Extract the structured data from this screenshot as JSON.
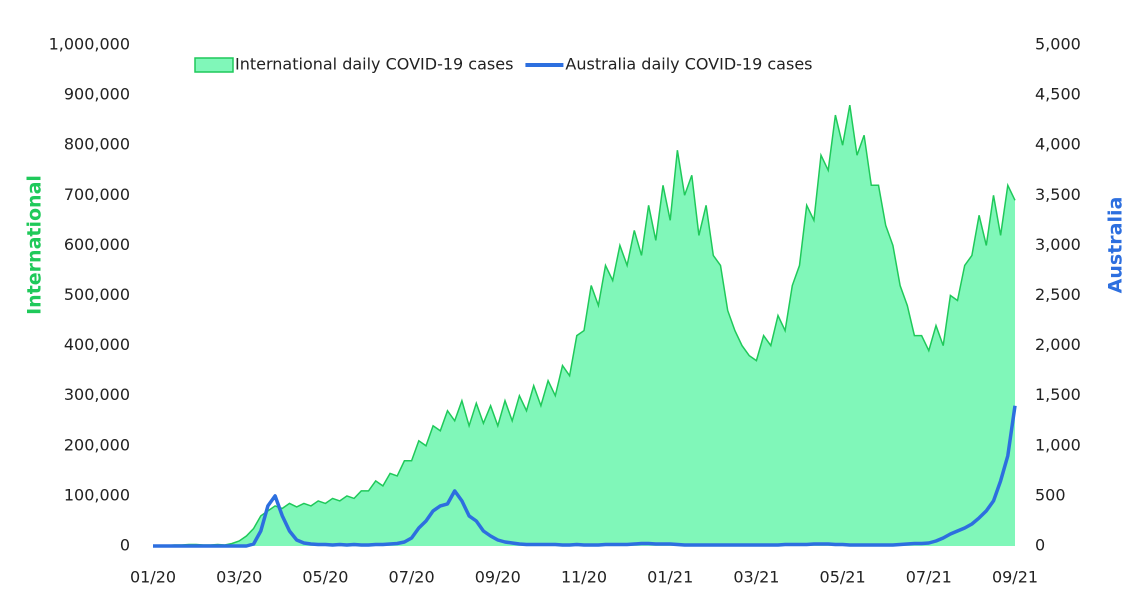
{
  "chart_data": {
    "type": "line",
    "categories": [
      "01/20",
      null,
      null,
      null,
      null,
      null,
      null,
      null,
      null,
      null,
      null,
      null,
      "03/20",
      null,
      null,
      null,
      null,
      null,
      null,
      null,
      null,
      null,
      null,
      null,
      "05/20",
      null,
      null,
      null,
      null,
      null,
      null,
      null,
      null,
      null,
      null,
      null,
      "07/20",
      null,
      null,
      null,
      null,
      null,
      null,
      null,
      null,
      null,
      null,
      null,
      "09/20",
      null,
      null,
      null,
      null,
      null,
      null,
      null,
      null,
      null,
      null,
      null,
      "11/20",
      null,
      null,
      null,
      null,
      null,
      null,
      null,
      null,
      null,
      null,
      null,
      "01/21",
      null,
      null,
      null,
      null,
      null,
      null,
      null,
      null,
      null,
      null,
      null,
      "03/21",
      null,
      null,
      null,
      null,
      null,
      null,
      null,
      null,
      null,
      null,
      null,
      "05/21",
      null,
      null,
      null,
      null,
      null,
      null,
      null,
      null,
      null,
      null,
      null,
      "07/21",
      null,
      null,
      null,
      null,
      null,
      null,
      null,
      null,
      null,
      null,
      null,
      "09/21"
    ],
    "series": [
      {
        "name": "International daily COVID-19 cases",
        "type": "area",
        "color": "#1fc95a",
        "fill": "#80f7b9",
        "values": [
          0,
          0,
          1000,
          2000,
          2000,
          3000,
          3000,
          2000,
          2000,
          3000,
          2000,
          5000,
          10000,
          20000,
          35000,
          60000,
          70000,
          80000,
          75000,
          85000,
          78000,
          85000,
          80000,
          90000,
          85000,
          95000,
          90000,
          100000,
          95000,
          110000,
          110000,
          130000,
          120000,
          145000,
          140000,
          170000,
          170000,
          210000,
          200000,
          240000,
          230000,
          270000,
          250000,
          290000,
          240000,
          285000,
          245000,
          280000,
          240000,
          290000,
          250000,
          300000,
          270000,
          320000,
          280000,
          330000,
          300000,
          360000,
          340000,
          420000,
          430000,
          520000,
          480000,
          560000,
          530000,
          600000,
          560000,
          630000,
          580000,
          680000,
          610000,
          720000,
          650000,
          790000,
          700000,
          740000,
          620000,
          680000,
          580000,
          560000,
          470000,
          430000,
          400000,
          380000,
          370000,
          420000,
          400000,
          460000,
          430000,
          520000,
          560000,
          680000,
          650000,
          780000,
          750000,
          860000,
          800000,
          880000,
          780000,
          820000,
          720000,
          720000,
          640000,
          600000,
          520000,
          480000,
          420000,
          420000,
          390000,
          440000,
          400000,
          500000,
          490000,
          560000,
          580000,
          660000,
          600000,
          700000,
          620000,
          720000,
          690000
        ]
      },
      {
        "name": "Australia daily COVID-19 cases",
        "type": "line",
        "axis": "y2",
        "color": "#2d6fdf",
        "values": [
          0,
          0,
          0,
          0,
          0,
          0,
          0,
          0,
          0,
          0,
          0,
          0,
          0,
          0,
          20,
          150,
          400,
          500,
          300,
          150,
          60,
          30,
          20,
          15,
          15,
          10,
          15,
          10,
          15,
          10,
          10,
          15,
          15,
          20,
          25,
          40,
          80,
          180,
          250,
          350,
          400,
          420,
          550,
          450,
          300,
          250,
          150,
          100,
          60,
          40,
          30,
          20,
          15,
          15,
          15,
          15,
          15,
          10,
          10,
          15,
          10,
          10,
          10,
          15,
          15,
          15,
          15,
          20,
          25,
          25,
          20,
          20,
          20,
          15,
          10,
          10,
          10,
          10,
          10,
          10,
          10,
          10,
          10,
          10,
          10,
          10,
          10,
          10,
          15,
          15,
          15,
          15,
          20,
          20,
          20,
          15,
          15,
          10,
          10,
          10,
          10,
          10,
          10,
          10,
          15,
          20,
          25,
          25,
          30,
          50,
          80,
          120,
          150,
          180,
          220,
          280,
          350,
          450,
          650,
          900,
          1400
        ]
      }
    ],
    "y_label": "International",
    "y2_label": "Australia",
    "ylim": [
      0,
      1000000
    ],
    "yticks": [
      0,
      {
        "value": 100000,
        "label": "100,000"
      },
      {
        "value": 200000,
        "label": "200,000"
      },
      {
        "value": 300000,
        "label": "300,000"
      },
      {
        "value": 400000,
        "label": "400,000"
      },
      {
        "value": 500000,
        "label": "500,000"
      },
      {
        "value": 600000,
        "label": "600,000"
      },
      {
        "value": 700000,
        "label": "700,000"
      },
      {
        "value": 800000,
        "label": "800,000"
      },
      {
        "value": 900000,
        "label": "900,000"
      },
      {
        "value": 1000000,
        "label": "1,000,000"
      }
    ],
    "y2lim": [
      0,
      5000
    ],
    "y2ticks": [
      0,
      500,
      {
        "value": 1000,
        "label": "1,000"
      },
      {
        "value": 1500,
        "label": "1,500"
      },
      {
        "value": 2000,
        "label": "2,000"
      },
      {
        "value": 2500,
        "label": "2,500"
      },
      {
        "value": 3000,
        "label": "3,000"
      },
      {
        "value": 3500,
        "label": "3,500"
      },
      {
        "value": 4000,
        "label": "4,000"
      },
      {
        "value": 4500,
        "label": "4,500"
      },
      {
        "value": 5000,
        "label": "5,000"
      }
    ],
    "legend": "top"
  }
}
